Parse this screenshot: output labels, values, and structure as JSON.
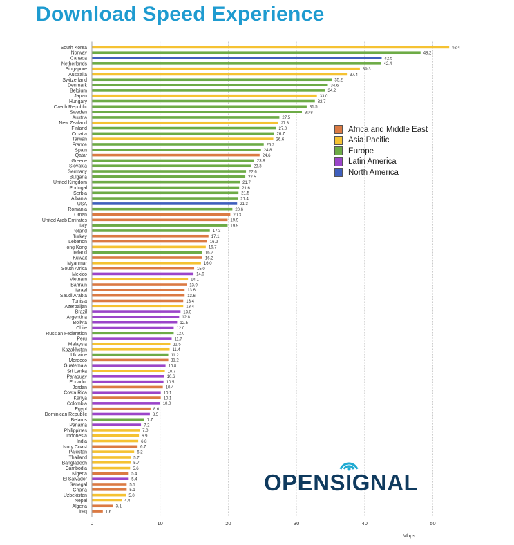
{
  "chart_data": {
    "type": "bar",
    "orientation": "horizontal",
    "title": "Download Speed Experience",
    "xlabel": "Mbps",
    "ylabel": "",
    "xlim": [
      0,
      54
    ],
    "xticks": [
      0,
      10,
      20,
      30,
      40,
      50
    ],
    "grid": "vertical dashed",
    "legend_position": "right-middle",
    "regions": [
      {
        "name": "Africa and Middle East",
        "color": "#db7a43"
      },
      {
        "name": "Asia Pacific",
        "color": "#f5c232"
      },
      {
        "name": "Europe",
        "color": "#6dab46"
      },
      {
        "name": "Latin America",
        "color": "#9b45c9"
      },
      {
        "name": "North America",
        "color": "#3f5fbd"
      }
    ],
    "bars": [
      {
        "country": "South Korea",
        "value": 52.4,
        "label": "52.4",
        "region": "Asia Pacific"
      },
      {
        "country": "Norway",
        "value": 48.2,
        "label": "48.2",
        "region": "Europe"
      },
      {
        "country": "Canada",
        "value": 42.5,
        "label": "42.5",
        "region": "North America"
      },
      {
        "country": "Netherlands",
        "value": 42.4,
        "label": "42.4",
        "region": "Europe"
      },
      {
        "country": "Singapore",
        "value": 39.3,
        "label": "39.3",
        "region": "Asia Pacific"
      },
      {
        "country": "Australia",
        "value": 37.4,
        "label": "37.4",
        "region": "Asia Pacific"
      },
      {
        "country": "Switzerland",
        "value": 35.2,
        "label": "35.2",
        "region": "Europe"
      },
      {
        "country": "Denmark",
        "value": 34.6,
        "label": "34.6",
        "region": "Europe"
      },
      {
        "country": "Belgium",
        "value": 34.2,
        "label": "34.2",
        "region": "Europe"
      },
      {
        "country": "Japan",
        "value": 33.0,
        "label": "33.0",
        "region": "Asia Pacific"
      },
      {
        "country": "Hungary",
        "value": 32.7,
        "label": "32.7",
        "region": "Europe"
      },
      {
        "country": "Czech Republic",
        "value": 31.5,
        "label": "31.5",
        "region": "Europe"
      },
      {
        "country": "Sweden",
        "value": 30.8,
        "label": "30.8",
        "region": "Europe"
      },
      {
        "country": "Austria",
        "value": 27.5,
        "label": "27.5",
        "region": "Europe"
      },
      {
        "country": "New Zealand",
        "value": 27.3,
        "label": "27.3",
        "region": "Asia Pacific"
      },
      {
        "country": "Finland",
        "value": 27.0,
        "label": "27.0",
        "region": "Europe"
      },
      {
        "country": "Croatia",
        "value": 26.7,
        "label": "26.7",
        "region": "Europe"
      },
      {
        "country": "Taiwan",
        "value": 26.6,
        "label": "26.6",
        "region": "Asia Pacific"
      },
      {
        "country": "France",
        "value": 25.2,
        "label": "25.2",
        "region": "Europe"
      },
      {
        "country": "Spain",
        "value": 24.8,
        "label": "24.8",
        "region": "Europe"
      },
      {
        "country": "Qatar",
        "value": 24.6,
        "label": "24.6",
        "region": "Africa and Middle East"
      },
      {
        "country": "Greece",
        "value": 23.8,
        "label": "23.8",
        "region": "Europe"
      },
      {
        "country": "Slovakia",
        "value": 23.3,
        "label": "23.3",
        "region": "Europe"
      },
      {
        "country": "Germany",
        "value": 22.6,
        "label": "22.6",
        "region": "Europe"
      },
      {
        "country": "Bulgaria",
        "value": 22.5,
        "label": "22.5",
        "region": "Europe"
      },
      {
        "country": "United Kingdom",
        "value": 21.7,
        "label": "21.7",
        "region": "Europe"
      },
      {
        "country": "Portugal",
        "value": 21.6,
        "label": "21.6",
        "region": "Europe"
      },
      {
        "country": "Serbia",
        "value": 21.5,
        "label": "21.5",
        "region": "Europe"
      },
      {
        "country": "Albania",
        "value": 21.4,
        "label": "21.4",
        "region": "Europe"
      },
      {
        "country": "USA",
        "value": 21.3,
        "label": "21.3",
        "region": "North America"
      },
      {
        "country": "Romania",
        "value": 20.6,
        "label": "20.6",
        "region": "Europe"
      },
      {
        "country": "Oman",
        "value": 20.3,
        "label": "20.3",
        "region": "Africa and Middle East"
      },
      {
        "country": "United Arab Emirates",
        "value": 19.9,
        "label": "19.9",
        "region": "Africa and Middle East"
      },
      {
        "country": "Italy",
        "value": 19.9,
        "label": "19.9",
        "region": "Europe"
      },
      {
        "country": "Poland",
        "value": 17.3,
        "label": "17.3",
        "region": "Europe"
      },
      {
        "country": "Turkey",
        "value": 17.1,
        "label": "17.1",
        "region": "Africa and Middle East"
      },
      {
        "country": "Lebanon",
        "value": 16.9,
        "label": "16.9",
        "region": "Africa and Middle East"
      },
      {
        "country": "Hong Kong",
        "value": 16.7,
        "label": "16.7",
        "region": "Asia Pacific"
      },
      {
        "country": "Ireland",
        "value": 16.2,
        "label": "16.2",
        "region": "Europe"
      },
      {
        "country": "Kuwait",
        "value": 16.2,
        "label": "16.2",
        "region": "Africa and Middle East"
      },
      {
        "country": "Myanmar",
        "value": 16.0,
        "label": "16.0",
        "region": "Asia Pacific"
      },
      {
        "country": "South Africa",
        "value": 15.0,
        "label": "15.0",
        "region": "Africa and Middle East"
      },
      {
        "country": "Mexico",
        "value": 14.9,
        "label": "14.9",
        "region": "Latin America"
      },
      {
        "country": "Vietnam",
        "value": 14.1,
        "label": "14.1",
        "region": "Asia Pacific"
      },
      {
        "country": "Bahrain",
        "value": 13.9,
        "label": "13.9",
        "region": "Africa and Middle East"
      },
      {
        "country": "Israel",
        "value": 13.6,
        "label": "13.6",
        "region": "Africa and Middle East"
      },
      {
        "country": "Saudi Arabia",
        "value": 13.6,
        "label": "13.6",
        "region": "Africa and Middle East"
      },
      {
        "country": "Tunisia",
        "value": 13.4,
        "label": "13.4",
        "region": "Africa and Middle East"
      },
      {
        "country": "Azerbaijan",
        "value": 13.4,
        "label": "13.4",
        "region": "Asia Pacific"
      },
      {
        "country": "Brazil",
        "value": 13.0,
        "label": "13.0",
        "region": "Latin America"
      },
      {
        "country": "Argentina",
        "value": 12.8,
        "label": "12.8",
        "region": "Latin America"
      },
      {
        "country": "Bolivia",
        "value": 12.5,
        "label": "12.5",
        "region": "Latin America"
      },
      {
        "country": "Chile",
        "value": 12.0,
        "label": "12.0",
        "region": "Latin America"
      },
      {
        "country": "Russian Federation",
        "value": 12.0,
        "label": "12.0",
        "region": "Europe"
      },
      {
        "country": "Peru",
        "value": 11.7,
        "label": "11.7",
        "region": "Latin America"
      },
      {
        "country": "Malaysia",
        "value": 11.5,
        "label": "11.5",
        "region": "Asia Pacific"
      },
      {
        "country": "Kazakhstan",
        "value": 11.4,
        "label": "11.4",
        "region": "Asia Pacific"
      },
      {
        "country": "Ukraine",
        "value": 11.2,
        "label": "11.2",
        "region": "Europe"
      },
      {
        "country": "Morocco",
        "value": 11.2,
        "label": "11.2",
        "region": "Africa and Middle East"
      },
      {
        "country": "Guatemala",
        "value": 10.8,
        "label": "10.8",
        "region": "Latin America"
      },
      {
        "country": "Sri Lanka",
        "value": 10.7,
        "label": "10.7",
        "region": "Asia Pacific"
      },
      {
        "country": "Paraguay",
        "value": 10.6,
        "label": "10.6",
        "region": "Latin America"
      },
      {
        "country": "Ecuador",
        "value": 10.5,
        "label": "10.5",
        "region": "Latin America"
      },
      {
        "country": "Jordan",
        "value": 10.4,
        "label": "10.4",
        "region": "Africa and Middle East"
      },
      {
        "country": "Costa Rica",
        "value": 10.1,
        "label": "10.1",
        "region": "Latin America"
      },
      {
        "country": "Kenya",
        "value": 10.1,
        "label": "10.1",
        "region": "Africa and Middle East"
      },
      {
        "country": "Colombia",
        "value": 10.0,
        "label": "10.0",
        "region": "Latin America"
      },
      {
        "country": "Egypt",
        "value": 8.6,
        "label": "8.6",
        "region": "Africa and Middle East"
      },
      {
        "country": "Dominican Republic",
        "value": 8.5,
        "label": "8.5",
        "region": "Latin America"
      },
      {
        "country": "Belarus",
        "value": 7.7,
        "label": "7.7",
        "region": "Europe"
      },
      {
        "country": "Panama",
        "value": 7.2,
        "label": "7.2",
        "region": "Latin America"
      },
      {
        "country": "Philippines",
        "value": 7.0,
        "label": "7.0",
        "region": "Asia Pacific"
      },
      {
        "country": "Indonesia",
        "value": 6.9,
        "label": "6.9",
        "region": "Asia Pacific"
      },
      {
        "country": "India",
        "value": 6.8,
        "label": "6.8",
        "region": "Asia Pacific"
      },
      {
        "country": "Ivory Coast",
        "value": 6.7,
        "label": "6.7",
        "region": "Africa and Middle East"
      },
      {
        "country": "Pakistan",
        "value": 6.2,
        "label": "6.2",
        "region": "Asia Pacific"
      },
      {
        "country": "Thailand",
        "value": 5.7,
        "label": "5.7",
        "region": "Asia Pacific"
      },
      {
        "country": "Bangladesh",
        "value": 5.7,
        "label": "5.7",
        "region": "Asia Pacific"
      },
      {
        "country": "Cambodia",
        "value": 5.6,
        "label": "5.6",
        "region": "Asia Pacific"
      },
      {
        "country": "Nigeria",
        "value": 5.4,
        "label": "5.4",
        "region": "Africa and Middle East"
      },
      {
        "country": "El Salvador",
        "value": 5.4,
        "label": "5.4",
        "region": "Latin America"
      },
      {
        "country": "Senegal",
        "value": 5.1,
        "label": "5.1",
        "region": "Africa and Middle East"
      },
      {
        "country": "Ghana",
        "value": 5.1,
        "label": "5.1",
        "region": "Africa and Middle East"
      },
      {
        "country": "Uzbekistan",
        "value": 5.0,
        "label": "5.0",
        "region": "Asia Pacific"
      },
      {
        "country": "Nepal",
        "value": 4.4,
        "label": "4.4",
        "region": "Asia Pacific"
      },
      {
        "country": "Algeria",
        "value": 3.1,
        "label": "3.1",
        "region": "Africa and Middle East"
      },
      {
        "country": "Iraq",
        "value": 1.6,
        "label": "1.6",
        "region": "Africa and Middle East"
      }
    ]
  },
  "branding": {
    "logo_text_before": "OPENS",
    "logo_text_signal": "I",
    "logo_text_after": "GNAL",
    "logo_color": "#0f3a5e",
    "logo_accent": "#1eaad2"
  }
}
